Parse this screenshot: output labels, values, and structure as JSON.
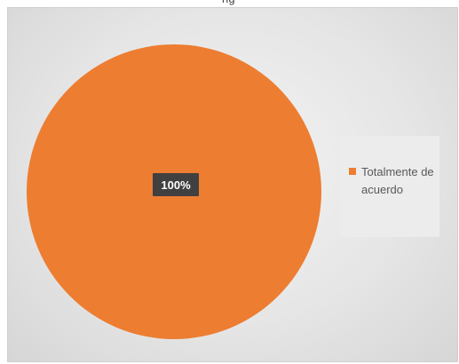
{
  "page": {
    "top_strip_text": "ng"
  },
  "chart_data": {
    "type": "pie",
    "title": "",
    "slices": [
      {
        "label": "Totalmente de acuerdo",
        "value": 100,
        "data_label": "100%",
        "color": "#ED7D31"
      }
    ],
    "legend": {
      "position": "right",
      "entries": [
        "Totalmente de acuerdo"
      ]
    }
  }
}
